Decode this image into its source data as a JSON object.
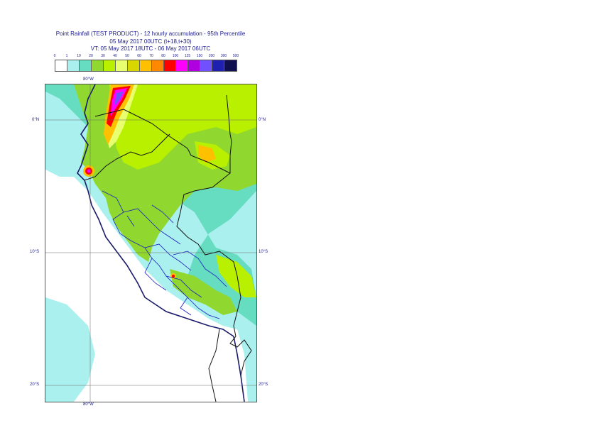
{
  "title": {
    "line1": "Point Rainfall (TEST PRODUCT) - 12 hourly accumulation - 95th Percentile",
    "line2": "05 May 2017 00UTC (t+18,t+30)",
    "line3": "VT: 05 May 2017 18UTC - 06 May 2017 06UTC"
  },
  "scale": {
    "labels": [
      "0",
      "1",
      "10",
      "20",
      "30",
      "40",
      "50",
      "60",
      "70",
      "80",
      "100",
      "125",
      "150",
      "200",
      "300",
      "500"
    ],
    "colors": [
      "#ffffff",
      "#aaf0ee",
      "#66dcc0",
      "#90d830",
      "#b8f000",
      "#e8ff70",
      "#d8d800",
      "#ffc000",
      "#ff8800",
      "#ff0000",
      "#ff00ff",
      "#b000e0",
      "#7050ff",
      "#2020b0",
      "#101050"
    ]
  },
  "map": {
    "lon_top": "80°W",
    "lon_bottom": "80°W",
    "lat_0_left": "0°N",
    "lat_0_right": "0°N",
    "lat_10_left": "10°S",
    "lat_10_right": "10°S",
    "lat_20_left": "20°S",
    "lat_20_right": "20°S"
  }
}
